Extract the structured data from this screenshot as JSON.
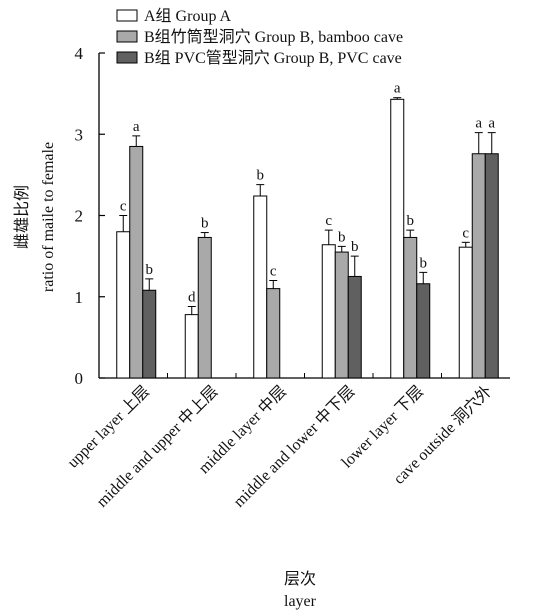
{
  "chart_data": {
    "type": "bar",
    "title": "",
    "xlabel": "层次",
    "xlabel_en": "layer",
    "ylabel": "雌雄比例",
    "ylabel_en": "ratio of maile to female",
    "ylim": [
      0,
      4
    ],
    "y_ticks": [
      "0",
      "1",
      "2",
      "3",
      "4"
    ],
    "legend_position": "top-left",
    "categories": [
      "upper layer 上层",
      "middle and upper 中上层",
      "middle layer 中层",
      "middle and lower 中下层",
      "lower layer 下层",
      "cave outside 洞穴外"
    ],
    "series": [
      {
        "name": "A组 Group A",
        "color": "#ffffff",
        "values": [
          1.8,
          0.78,
          2.24,
          1.64,
          3.43,
          1.61
        ],
        "errors": [
          0.2,
          0.1,
          0.14,
          0.18,
          0.02,
          0.06
        ],
        "labels": [
          "c",
          "d",
          "b",
          "c",
          "a",
          "c"
        ]
      },
      {
        "name": "B组竹筒型洞穴 Group B, bamboo cave",
        "color": "#a9a9a9",
        "values": [
          2.85,
          1.73,
          1.1,
          1.55,
          1.73,
          2.76
        ],
        "errors": [
          0.13,
          0.06,
          0.1,
          0.07,
          0.09,
          0.26
        ],
        "labels": [
          "a",
          "b",
          "c",
          "b",
          "b",
          "a"
        ]
      },
      {
        "name": "B组 PVC管型洞穴 Group B, PVC cave",
        "color": "#606060",
        "values": [
          1.08,
          null,
          null,
          1.25,
          1.16,
          2.76
        ],
        "errors": [
          0.14,
          null,
          null,
          0.25,
          0.14,
          0.26
        ],
        "labels": [
          "b",
          "",
          "",
          "b",
          "b",
          "a"
        ]
      }
    ]
  }
}
